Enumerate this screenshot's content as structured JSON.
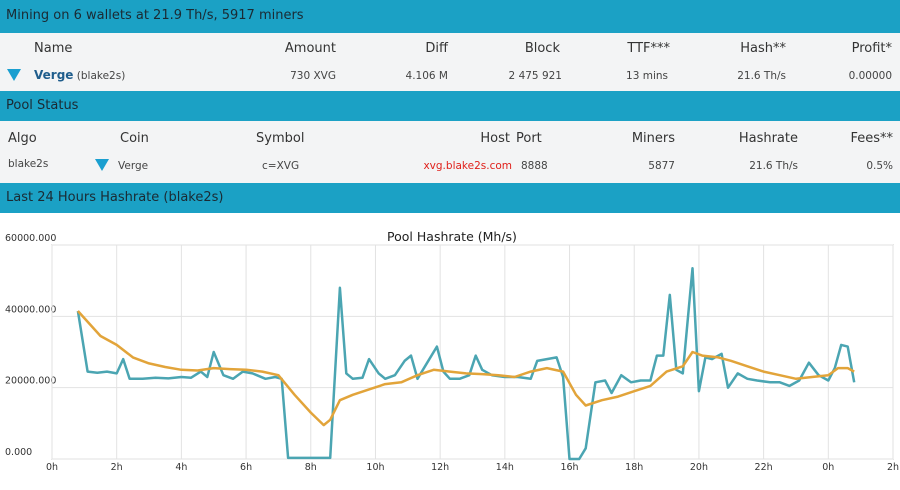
{
  "header": {
    "title": "Mining on 6 wallets at 21.9 Th/s, 5917 miners"
  },
  "wallets": {
    "columns": [
      "Name",
      "Amount",
      "Diff",
      "Block",
      "TTF***",
      "Hash**",
      "Profit*"
    ],
    "rows": [
      {
        "name": "Verge",
        "algo": "(blake2s)",
        "cells": [
          "730 XVG",
          "4.106 M",
          "2 475 921",
          "13 mins",
          "21.6 Th/s",
          "0.00000"
        ]
      }
    ]
  },
  "pool_status": {
    "title": "Pool Status",
    "columns": [
      "Algo",
      "Coin",
      "Symbol",
      "Host",
      "Port",
      "Miners",
      "Hashrate",
      "Fees**"
    ],
    "rows": [
      [
        "blake2s",
        "Verge",
        "c=XVG",
        "xvg.blake2s.com",
        "8888",
        "5877",
        "21.6 Th/s",
        "0.5%"
      ]
    ]
  },
  "hashrate_section": {
    "title": "Last 24 Hours Hashrate (blake2s)"
  },
  "chart_data": {
    "type": "line",
    "title": "Pool Hashrate (Mh/s)",
    "xlim": [
      0,
      26
    ],
    "ylim": [
      0,
      60000
    ],
    "grid": true,
    "xticks": [
      {
        "value": 0,
        "label": "0h"
      },
      {
        "value": 2,
        "label": "2h"
      },
      {
        "value": 4,
        "label": "4h"
      },
      {
        "value": 6,
        "label": "6h"
      },
      {
        "value": 8,
        "label": "8h"
      },
      {
        "value": 10,
        "label": "10h"
      },
      {
        "value": 12,
        "label": "12h"
      },
      {
        "value": 14,
        "label": "14h"
      },
      {
        "value": 16,
        "label": "16h"
      },
      {
        "value": 18,
        "label": "18h"
      },
      {
        "value": 20,
        "label": "20h"
      },
      {
        "value": 22,
        "label": "22h"
      },
      {
        "value": 24,
        "label": "0h"
      },
      {
        "value": 26,
        "label": "2h"
      }
    ],
    "yticks": [
      {
        "value": 0,
        "label": "0.000"
      },
      {
        "value": 20000,
        "label": "20000.000"
      },
      {
        "value": 40000,
        "label": "40000.000"
      },
      {
        "value": 60000,
        "label": "60000.000"
      }
    ],
    "series": [
      {
        "color": "#4ba5b2",
        "x": [
          0.8,
          1.1,
          1.4,
          1.7,
          2.0,
          2.2,
          2.4,
          2.8,
          3.2,
          3.6,
          4.0,
          4.3,
          4.6,
          4.8,
          5.0,
          5.3,
          5.6,
          5.9,
          6.2,
          6.6,
          6.9,
          7.1,
          7.3,
          7.7,
          8.0,
          8.4,
          8.6,
          8.9,
          9.1,
          9.3,
          9.6,
          9.8,
          10.1,
          10.3,
          10.6,
          10.9,
          11.1,
          11.3,
          11.6,
          11.9,
          12.1,
          12.3,
          12.6,
          12.9,
          13.1,
          13.3,
          13.6,
          14.0,
          14.4,
          14.8,
          15.0,
          15.3,
          15.6,
          15.8,
          16.0,
          16.3,
          16.5,
          16.8,
          17.1,
          17.3,
          17.6,
          17.9,
          18.2,
          18.5,
          18.7,
          18.9,
          19.1,
          19.3,
          19.5,
          19.8,
          20.0,
          20.2,
          20.4,
          20.7,
          20.9,
          21.2,
          21.5,
          21.8,
          22.2,
          22.5,
          22.8,
          23.1,
          23.4,
          23.7,
          24.0,
          24.2,
          24.4,
          24.6,
          24.8
        ],
        "values": [
          41500,
          24500,
          24200,
          24500,
          24000,
          28000,
          22500,
          22500,
          22800,
          22600,
          23000,
          22800,
          24500,
          23000,
          30000,
          23500,
          22500,
          24500,
          24000,
          22500,
          23000,
          22500,
          300,
          300,
          300,
          300,
          300,
          48000,
          24000,
          22500,
          22800,
          28000,
          24000,
          22500,
          23500,
          27500,
          29000,
          22500,
          27000,
          31500,
          24500,
          22500,
          22500,
          23500,
          29000,
          25000,
          23500,
          23000,
          23000,
          22500,
          27500,
          28000,
          28500,
          23000,
          0,
          0,
          3000,
          21500,
          22000,
          18500,
          23500,
          21500,
          22000,
          22000,
          29000,
          29000,
          46000,
          25000,
          24000,
          53500,
          19000,
          28500,
          28000,
          29500,
          20000,
          24000,
          22500,
          22000,
          21500,
          21500,
          20500,
          22000,
          27000,
          23500,
          22000,
          25500,
          32000,
          31500,
          21500
        ]
      },
      {
        "color": "#e2a43a",
        "x": [
          0.8,
          1.5,
          2.0,
          2.5,
          3.0,
          3.5,
          4.0,
          4.5,
          5.0,
          5.5,
          6.0,
          6.5,
          7.0,
          7.5,
          8.0,
          8.4,
          8.6,
          8.9,
          9.3,
          9.8,
          10.3,
          10.8,
          11.3,
          11.8,
          12.3,
          12.8,
          13.3,
          13.8,
          14.3,
          14.8,
          15.3,
          15.8,
          16.2,
          16.5,
          17.0,
          17.5,
          18.0,
          18.5,
          19.0,
          19.5,
          19.8,
          20.1,
          20.6,
          21.0,
          21.5,
          22.0,
          22.5,
          23.0,
          23.5,
          24.0,
          24.3,
          24.6,
          24.8
        ],
        "values": [
          41500,
          34500,
          32000,
          28500,
          26800,
          25800,
          25000,
          24800,
          25500,
          25200,
          25000,
          24500,
          23500,
          18000,
          13000,
          9500,
          11000,
          16500,
          18000,
          19500,
          21000,
          21500,
          23500,
          25000,
          24500,
          24000,
          23800,
          23500,
          23000,
          24500,
          25500,
          24500,
          18000,
          15000,
          16500,
          17500,
          19000,
          20500,
          24500,
          26000,
          30000,
          29000,
          28500,
          27500,
          26000,
          24500,
          23500,
          22500,
          23000,
          23500,
          25500,
          25500,
          24500
        ]
      }
    ]
  }
}
